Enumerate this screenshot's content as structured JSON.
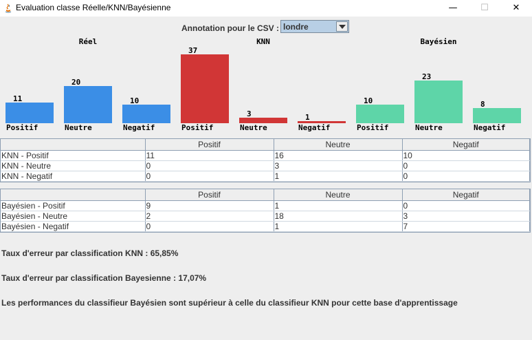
{
  "window": {
    "title": "Evaluation classe Réelle/KNN/Bayésienne",
    "min": "—",
    "max": "☐",
    "close": "✕"
  },
  "annotation": {
    "label": "Annotation pour le CSV :",
    "value": "londre"
  },
  "chart_data": [
    {
      "type": "bar",
      "title": "Réel",
      "categories": [
        "Positif",
        "Neutre",
        "Negatif"
      ],
      "values": [
        11,
        20,
        10
      ],
      "color": "#3b8ee6"
    },
    {
      "type": "bar",
      "title": "KNN",
      "categories": [
        "Positif",
        "Neutre",
        "Negatif"
      ],
      "values": [
        37,
        3,
        1
      ],
      "color": "#d13636"
    },
    {
      "type": "bar",
      "title": "Bayésien",
      "categories": [
        "Positif",
        "Neutre",
        "Negatif"
      ],
      "values": [
        10,
        23,
        8
      ],
      "color": "#5ed5a8"
    }
  ],
  "knn_table": {
    "headers": [
      "",
      "Positif",
      "Neutre",
      "Negatif"
    ],
    "rows": [
      [
        "KNN - Positif",
        "11",
        "16",
        "10"
      ],
      [
        "KNN - Neutre",
        "0",
        "3",
        "0"
      ],
      [
        "KNN - Negatif",
        "0",
        "1",
        "0"
      ]
    ]
  },
  "bayes_table": {
    "headers": [
      "",
      "Positif",
      "Neutre",
      "Negatif"
    ],
    "rows": [
      [
        "Bayésien - Positif",
        "9",
        "1",
        "0"
      ],
      [
        "Bayésien - Neutre",
        "2",
        "18",
        "3"
      ],
      [
        "Bayésien - Negatif",
        "0",
        "1",
        "7"
      ]
    ]
  },
  "stats": {
    "knn_error": "Taux d'erreur par classification KNN : 65,85%",
    "bayes_error": "Taux d'erreur par classification Bayesienne : 17,07%",
    "conclusion": "Les performances du classifieur Bayésien sont supérieur à celle du classifieur KNN pour cette base d'apprentissage"
  }
}
